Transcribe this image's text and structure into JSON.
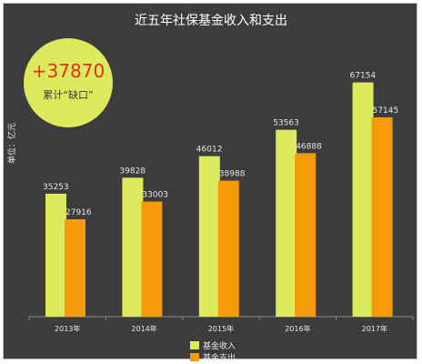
{
  "chart_data": {
    "type": "bar",
    "title": "近五年社保基金收入和支出",
    "ylabel": "单位：亿元",
    "categories": [
      "2013年",
      "2014年",
      "2015年",
      "2016年",
      "2017年"
    ],
    "series": [
      {
        "name": "基金收入",
        "color": "#dcea5c",
        "values": [
          35253,
          39828,
          46012,
          53563,
          67154
        ]
      },
      {
        "name": "基金支出",
        "color": "#f59a09",
        "values": [
          27916,
          33003,
          38988,
          46888,
          57145
        ]
      }
    ],
    "ylim": [
      0,
      72000
    ],
    "grid": false,
    "legend_position": "bottom"
  },
  "callout": {
    "value": "+37870",
    "label": "累计“缺口”"
  },
  "colors": {
    "background": "#3c3c3c",
    "callout_fill": "#dcea5c",
    "callout_value": "#e0311e"
  }
}
